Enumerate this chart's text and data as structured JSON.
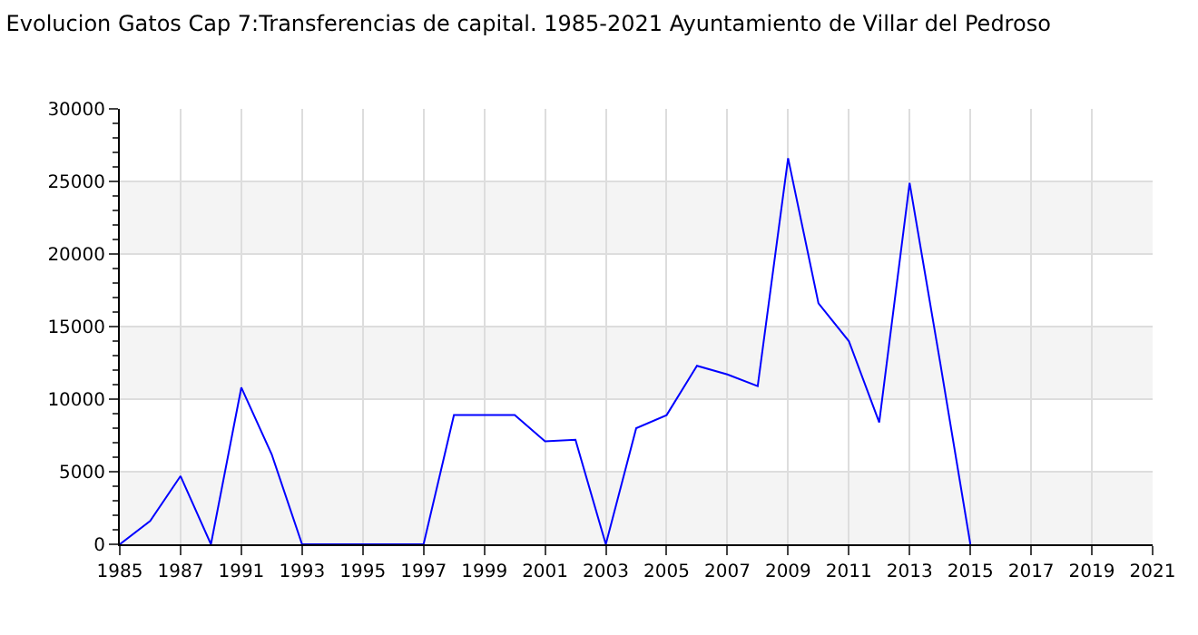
{
  "chart_data": {
    "type": "line",
    "title": "Evolucion Gatos Cap 7:Transferencias de capital. 1985-2021 Ayuntamiento de Villar del Pedroso",
    "categories": [
      "1985",
      null,
      "1987",
      null,
      "1991",
      null,
      "1993",
      null,
      "1995",
      null,
      "1997",
      null,
      "1999",
      null,
      "2001",
      null,
      "2003",
      null,
      "2005",
      null,
      "2007",
      null,
      "2009",
      null,
      "2011",
      null,
      "2013",
      null,
      "2015",
      null,
      "2017",
      null,
      "2019",
      null,
      "2021"
    ],
    "series": [
      {
        "color": "#0000ff",
        "values": [
          0,
          1600,
          4700,
          0,
          10800,
          6200,
          0,
          0,
          0,
          0,
          0,
          8900,
          8900,
          8900,
          7100,
          7200,
          0,
          8000,
          8900,
          12300,
          11700,
          10900,
          26600,
          16600,
          14000,
          8400,
          24900,
          12600,
          0,
          null,
          null,
          null,
          null,
          null,
          null
        ]
      }
    ],
    "ylim": [
      0,
      30000
    ],
    "yticks": [
      0,
      5000,
      10000,
      15000,
      20000,
      25000,
      30000
    ],
    "grid": true,
    "marker": "none",
    "line_style": "solid",
    "bands": [
      {
        "axis": "y",
        "from": 0,
        "to": 5000,
        "color": "#f4f4f4"
      },
      {
        "axis": "y",
        "from": 10000,
        "to": 15000,
        "color": "#f4f4f4"
      },
      {
        "axis": "y",
        "from": 20000,
        "to": 25000,
        "color": "#f4f4f4"
      }
    ]
  }
}
